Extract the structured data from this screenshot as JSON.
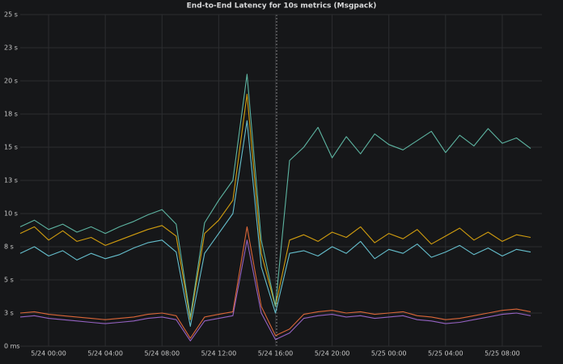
{
  "chart_data": {
    "type": "line",
    "title": "End-to-End Latency for 10s metrics (Msgpack)",
    "x": [
      "5/23 22:00",
      "5/23 23:00",
      "5/24 00:00",
      "5/24 01:00",
      "5/24 02:00",
      "5/24 03:00",
      "5/24 04:00",
      "5/24 05:00",
      "5/24 06:00",
      "5/24 07:00",
      "5/24 08:00",
      "5/24 09:00",
      "5/24 10:00",
      "5/24 11:00",
      "5/24 12:00",
      "5/24 13:00",
      "5/24 14:00",
      "5/24 15:00",
      "5/24 16:00",
      "5/24 17:00",
      "5/24 18:00",
      "5/24 19:00",
      "5/24 20:00",
      "5/24 21:00",
      "5/24 22:00",
      "5/24 23:00",
      "5/25 00:00",
      "5/25 01:00",
      "5/25 02:00",
      "5/25 03:00",
      "5/25 04:00",
      "5/25 05:00",
      "5/25 06:00",
      "5/25 07:00",
      "5/25 08:00",
      "5/25 09:00",
      "5/25 10:00"
    ],
    "series": [
      {
        "color": "#e5ac0e",
        "values": [
          8.5,
          9,
          8,
          8.7,
          7.9,
          8.2,
          7.6,
          8,
          8.4,
          8.8,
          9.1,
          8.3,
          2,
          8.5,
          9.5,
          11,
          19,
          7,
          3,
          8,
          8.4,
          7.9,
          8.6,
          8.2,
          9,
          7.8,
          8.5,
          8.1,
          8.8,
          7.7,
          8.3,
          8.9,
          8,
          8.6,
          7.9,
          8.4,
          8.2
        ]
      },
      {
        "color": "#6ed0e0",
        "values": [
          7,
          7.5,
          6.8,
          7.2,
          6.5,
          7,
          6.6,
          6.9,
          7.4,
          7.8,
          8,
          7.1,
          1.5,
          7,
          8.5,
          10,
          17,
          6,
          2.5,
          7,
          7.2,
          6.8,
          7.5,
          7,
          7.9,
          6.6,
          7.3,
          7,
          7.7,
          6.7,
          7.1,
          7.6,
          6.9,
          7.4,
          6.8,
          7.3,
          7.1
        ]
      },
      {
        "color": "#65c5b0",
        "values": [
          9,
          9.5,
          8.8,
          9.2,
          8.6,
          9,
          8.5,
          9,
          9.4,
          9.9,
          10.3,
          9.2,
          2.2,
          9.3,
          11,
          12.5,
          20.5,
          8,
          3,
          14,
          15,
          16.5,
          14.2,
          15.8,
          14.5,
          16,
          15.2,
          14.8,
          15.5,
          16.2,
          14.6,
          15.9,
          15.1,
          16.4,
          15.3,
          15.7,
          14.9
        ]
      },
      {
        "color": "#ef6f3c",
        "values": [
          2.5,
          2.6,
          2.4,
          2.3,
          2.2,
          2.1,
          2,
          2.1,
          2.2,
          2.4,
          2.5,
          2.3,
          0.6,
          2.2,
          2.4,
          2.6,
          9,
          3,
          0.8,
          1.3,
          2.4,
          2.6,
          2.7,
          2.5,
          2.6,
          2.4,
          2.5,
          2.6,
          2.3,
          2.2,
          2,
          2.1,
          2.3,
          2.5,
          2.7,
          2.8,
          2.6
        ]
      },
      {
        "color": "#a36bd6",
        "values": [
          2.2,
          2.3,
          2.1,
          2,
          1.9,
          1.8,
          1.7,
          1.8,
          1.9,
          2.1,
          2.2,
          2,
          0.4,
          1.9,
          2.1,
          2.3,
          8,
          2.5,
          0.5,
          1,
          2.1,
          2.3,
          2.4,
          2.2,
          2.3,
          2.1,
          2.2,
          2.3,
          2,
          1.9,
          1.7,
          1.8,
          2,
          2.2,
          2.4,
          2.5,
          2.3
        ]
      }
    ],
    "xlim": [
      "5/23 22:00",
      "5/25 10:48"
    ],
    "xticks": [
      "5/24 00:00",
      "5/24 04:00",
      "5/24 08:00",
      "5/24 12:00",
      "5/24 16:00",
      "5/24 20:00",
      "5/25 00:00",
      "5/25 04:00",
      "5/25 08:00"
    ],
    "ylim": [
      0,
      25
    ],
    "yticks": [
      {
        "value": 0,
        "label": "0 ms"
      },
      {
        "value": 2.5,
        "label": "3 s"
      },
      {
        "value": 5,
        "label": "5 s"
      },
      {
        "value": 7.5,
        "label": "8 s"
      },
      {
        "value": 10,
        "label": "10 s"
      },
      {
        "value": 12.5,
        "label": "13 s"
      },
      {
        "value": 15,
        "label": "15 s"
      },
      {
        "value": 17.5,
        "label": "18 s"
      },
      {
        "value": 20,
        "label": "20 s"
      },
      {
        "value": 22.5,
        "label": "23 s"
      },
      {
        "value": 25,
        "label": "25 s"
      }
    ],
    "grid": true
  }
}
